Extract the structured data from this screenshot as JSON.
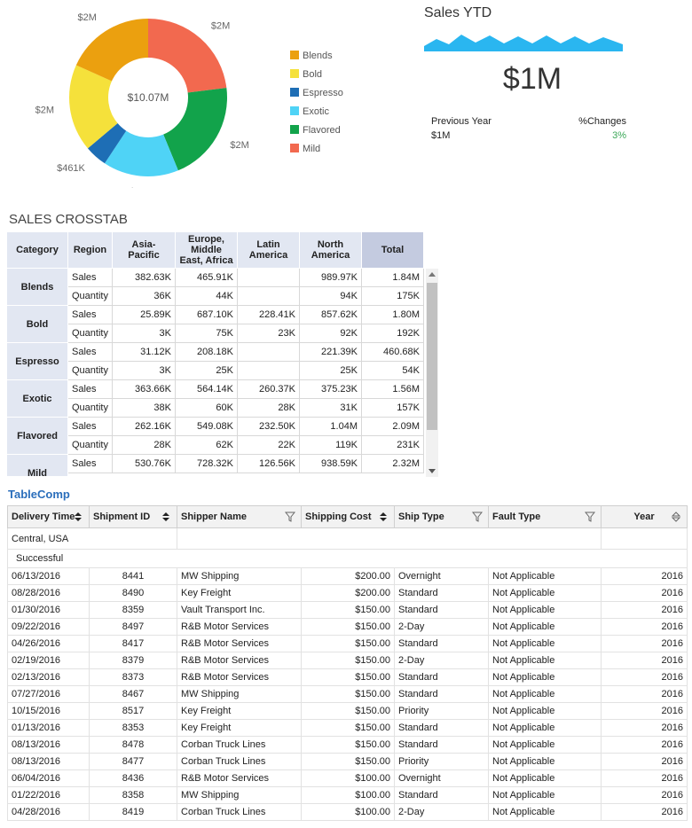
{
  "chart_data": {
    "type": "donut",
    "categories": [
      "Blends",
      "Bold",
      "Espresso",
      "Exotic",
      "Flavored",
      "Mild"
    ],
    "values": [
      1840000,
      1800000,
      460680,
      1560000,
      2090000,
      2320000
    ],
    "value_labels": [
      "$2M",
      "$2M",
      "$461K",
      "$2M",
      "$2M",
      "$2M"
    ],
    "colors": [
      "#eba00f",
      "#f5e13b",
      "#1e6eb5",
      "#4fd3f6",
      "#12a34b",
      "#f2694f"
    ],
    "center_label": "$10.07M",
    "legend": "right"
  },
  "kpi": {
    "title": "Sales YTD",
    "value": "$1M",
    "previous_label": "Previous Year",
    "previous_value": "$1M",
    "change_label": "%Changes",
    "change_value": "3%"
  },
  "crosstab": {
    "title": "SALES CROSSTAB",
    "headers": [
      "Category",
      "Region",
      "Asia-Pacific",
      "Europe, Middle East, Africa",
      "Latin America",
      "North America",
      "Total"
    ],
    "groups": [
      {
        "category": "Blends",
        "rows": [
          {
            "measure": "Sales",
            "cells": [
              "382.63K",
              "465.91K",
              null,
              "989.97K",
              "1.84M"
            ]
          },
          {
            "measure": "Quantity",
            "cells": [
              "36K",
              "44K",
              null,
              "94K",
              "175K"
            ]
          }
        ]
      },
      {
        "category": "Bold",
        "rows": [
          {
            "measure": "Sales",
            "cells": [
              "25.89K",
              "687.10K",
              "228.41K",
              "857.62K",
              "1.80M"
            ]
          },
          {
            "measure": "Quantity",
            "cells": [
              "3K",
              "75K",
              "23K",
              "92K",
              "192K"
            ]
          }
        ]
      },
      {
        "category": "Espresso",
        "rows": [
          {
            "measure": "Sales",
            "cells": [
              "31.12K",
              "208.18K",
              null,
              "221.39K",
              "460.68K"
            ]
          },
          {
            "measure": "Quantity",
            "cells": [
              "3K",
              "25K",
              null,
              "25K",
              "54K"
            ]
          }
        ]
      },
      {
        "category": "Exotic",
        "rows": [
          {
            "measure": "Sales",
            "cells": [
              "363.66K",
              "564.14K",
              "260.37K",
              "375.23K",
              "1.56M"
            ]
          },
          {
            "measure": "Quantity",
            "cells": [
              "38K",
              "60K",
              "28K",
              "31K",
              "157K"
            ]
          }
        ]
      },
      {
        "category": "Flavored",
        "rows": [
          {
            "measure": "Sales",
            "cells": [
              "262.16K",
              "549.08K",
              "232.50K",
              "1.04M",
              "2.09M"
            ]
          },
          {
            "measure": "Quantity",
            "cells": [
              "28K",
              "62K",
              "22K",
              "119K",
              "231K"
            ]
          }
        ]
      },
      {
        "category": "Mild",
        "rows": [
          {
            "measure": "Sales",
            "cells": [
              "530.76K",
              "728.32K",
              "126.56K",
              "938.59K",
              "2.32M"
            ]
          }
        ]
      }
    ]
  },
  "table_comp": {
    "title": "TableComp",
    "headers": [
      "Delivery Time",
      "Shipment ID",
      "Shipper Name",
      "Shipping Cost",
      "Ship Type",
      "Fault Type",
      "Year"
    ],
    "group_rows": [
      "Central, USA",
      "Successful"
    ],
    "rows": [
      [
        "06/13/2016",
        "8441",
        "MW Shipping",
        "$200.00",
        "Overnight",
        "Not Applicable",
        "2016"
      ],
      [
        "08/28/2016",
        "8490",
        "Key Freight",
        "$200.00",
        "Standard",
        "Not Applicable",
        "2016"
      ],
      [
        "01/30/2016",
        "8359",
        "Vault Transport Inc.",
        "$150.00",
        "Standard",
        "Not Applicable",
        "2016"
      ],
      [
        "09/22/2016",
        "8497",
        "R&B Motor Services",
        "$150.00",
        "2-Day",
        "Not Applicable",
        "2016"
      ],
      [
        "04/26/2016",
        "8417",
        "R&B Motor Services",
        "$150.00",
        "Standard",
        "Not Applicable",
        "2016"
      ],
      [
        "02/19/2016",
        "8379",
        "R&B Motor Services",
        "$150.00",
        "2-Day",
        "Not Applicable",
        "2016"
      ],
      [
        "02/13/2016",
        "8373",
        "R&B Motor Services",
        "$150.00",
        "Standard",
        "Not Applicable",
        "2016"
      ],
      [
        "07/27/2016",
        "8467",
        "MW Shipping",
        "$150.00",
        "Standard",
        "Not Applicable",
        "2016"
      ],
      [
        "10/15/2016",
        "8517",
        "Key Freight",
        "$150.00",
        "Priority",
        "Not Applicable",
        "2016"
      ],
      [
        "01/13/2016",
        "8353",
        "Key Freight",
        "$150.00",
        "Standard",
        "Not Applicable",
        "2016"
      ],
      [
        "08/13/2016",
        "8478",
        "Corban Truck Lines",
        "$150.00",
        "Standard",
        "Not Applicable",
        "2016"
      ],
      [
        "08/13/2016",
        "8477",
        "Corban Truck Lines",
        "$150.00",
        "Priority",
        "Not Applicable",
        "2016"
      ],
      [
        "06/04/2016",
        "8436",
        "R&B Motor Services",
        "$100.00",
        "Overnight",
        "Not Applicable",
        "2016"
      ],
      [
        "01/22/2016",
        "8358",
        "MW Shipping",
        "$100.00",
        "Standard",
        "Not Applicable",
        "2016"
      ],
      [
        "04/28/2016",
        "8419",
        "Corban Truck Lines",
        "$100.00",
        "2-Day",
        "Not Applicable",
        "2016"
      ]
    ]
  }
}
